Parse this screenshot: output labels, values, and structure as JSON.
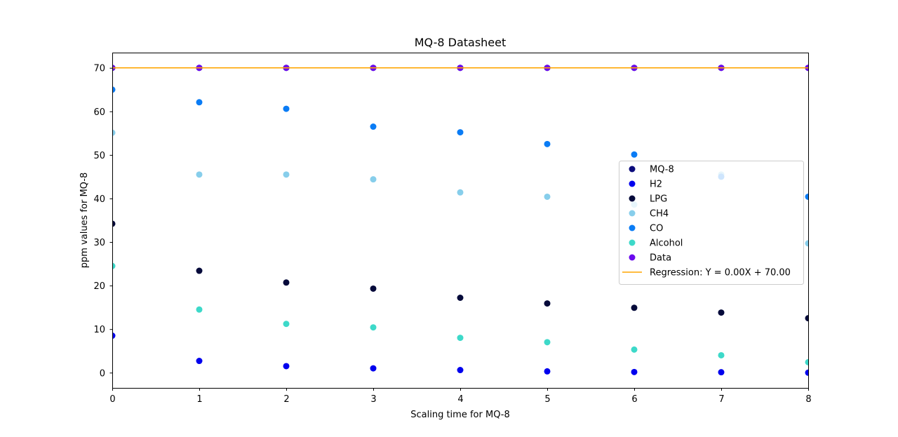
{
  "chart_data": {
    "type": "scatter",
    "title": "MQ-8 Datasheet",
    "xlabel": "Scaling time for MQ-8",
    "ylabel": "ppm values for MQ-8",
    "xlim": [
      0,
      8
    ],
    "ylim": [
      -3.5,
      73.5
    ],
    "xticks": [
      "0",
      "1",
      "2",
      "3",
      "4",
      "5",
      "6",
      "7",
      "8"
    ],
    "yticks": [
      "0",
      "10",
      "20",
      "30",
      "40",
      "50",
      "60",
      "70"
    ],
    "legend_position": "center-right",
    "grid": false,
    "x": [
      0,
      1,
      2,
      3,
      4,
      5,
      6,
      7,
      8
    ],
    "series": [
      {
        "name": "MQ-8",
        "kind": "scatter",
        "color": "#0c0c7c",
        "values": [
          70,
          70,
          70,
          70,
          70,
          70,
          70,
          70,
          70
        ]
      },
      {
        "name": "H2",
        "kind": "scatter",
        "color": "#0000ee",
        "values": [
          8.5,
          2.7,
          1.5,
          1.0,
          0.6,
          0.3,
          0.15,
          0.1,
          0.0
        ]
      },
      {
        "name": "LPG",
        "kind": "scatter",
        "color": "#050a3a",
        "values": [
          34.2,
          23.4,
          20.7,
          19.3,
          17.2,
          15.9,
          14.9,
          13.8,
          12.5
        ]
      },
      {
        "name": "CH4",
        "kind": "scatter",
        "color": "#87ceeb",
        "values": [
          55.1,
          45.5,
          45.5,
          44.4,
          41.4,
          40.4,
          38.6,
          45.5,
          29.7
        ]
      },
      {
        "name": "CO",
        "kind": "scatter",
        "color": "#0a7cf5",
        "values": [
          65.0,
          62.1,
          60.6,
          56.5,
          55.2,
          52.5,
          50.1,
          45.0,
          40.4
        ]
      },
      {
        "name": "Alcohol",
        "kind": "scatter",
        "color": "#3dd9c9",
        "values": [
          24.5,
          14.5,
          11.2,
          10.4,
          8.0,
          7.0,
          5.3,
          4.0,
          2.4
        ]
      },
      {
        "name": "Data",
        "kind": "scatter",
        "color": "#6a0aee",
        "values": [
          70,
          70,
          70,
          70,
          70,
          70,
          70,
          70,
          70
        ]
      },
      {
        "name": "Regression: Y = 0.00X + 70.00",
        "kind": "line",
        "color": "#ffa500",
        "values": [
          70,
          70,
          70,
          70,
          70,
          70,
          70,
          70,
          70
        ]
      }
    ]
  }
}
